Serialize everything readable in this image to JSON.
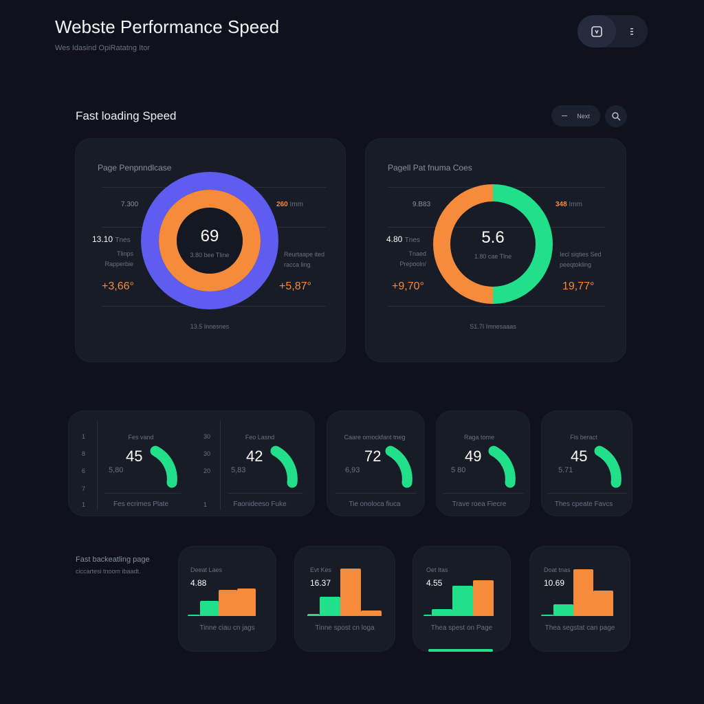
{
  "header": {
    "title": "Webste Performance Speed",
    "subtitle": "Wes Idasind OpiRatatng Itor",
    "icon_button": "shield-icon",
    "menu_button": "more-vertical-icon"
  },
  "section": {
    "title": "Fast loading Speed",
    "toggle_label": "Next",
    "search_icon": "search-icon"
  },
  "donut_cards": [
    {
      "title": "Page Penpnndlcase",
      "center_value": "69",
      "center_sub": "3.80 bee Tline",
      "top_left": "7.300",
      "top_right_value": "260",
      "top_right_unit": "Imm",
      "mid_left_value": "13.10",
      "mid_left_unit": "Tnes",
      "left_label_1": "Tlinps",
      "left_label_2": "Rapperbie",
      "left_delta": "+3,66°",
      "right_label_1": "Reurtaape ited",
      "right_label_2": "racca ling",
      "right_delta": "+5,87°",
      "footer": "13.5 Innesnes"
    },
    {
      "title": "Pagell Pat fnuma Coes",
      "center_value": "5.6",
      "center_sub": "1.80 cae Tlne",
      "top_left": "9.B83",
      "top_right_value": "348",
      "top_right_unit": "Imm",
      "mid_left_value": "4.80",
      "mid_left_unit": "Tnes",
      "left_label_1": "Tnaed",
      "left_label_2": "Prepooln/",
      "left_delta": "+9,70°",
      "right_label_1": "Iecl siqties Sed",
      "right_label_2": "peeqtokling",
      "right_delta": "19,77°",
      "footer": "S1.7I Imnesaaas"
    }
  ],
  "gauge_group": {
    "axis_left": [
      "1",
      "8",
      "6",
      "7",
      "1"
    ],
    "axis_right": [
      "30",
      "30",
      "20",
      "",
      "1"
    ]
  },
  "gauges": [
    {
      "title": "Fes vand",
      "value": "45",
      "sub": "5,80",
      "footer": "Fes ecrimes Plate",
      "level": 0.45
    },
    {
      "title": "Feo Lasnd",
      "value": "42",
      "sub": "5,83",
      "footer": "Faonideeso Fuke",
      "level": 0.42
    },
    {
      "title": "Caare ornockfant tneg",
      "value": "72",
      "sub": "6,93",
      "footer": "Tie onoloca fiuca",
      "level": 0.72
    },
    {
      "title": "Raga tome",
      "value": "49",
      "sub": "5 80",
      "footer": "Trave roea Fiecre",
      "level": 0.49
    },
    {
      "title": "Fis beract",
      "value": "45",
      "sub": "5.71",
      "footer": "Thes cpeate Favcs",
      "level": 0.45
    }
  ],
  "bottom": {
    "title": "Fast backeatling page",
    "subtitle": "ciccartesi tnoom ibaadt."
  },
  "chart_data": [
    {
      "type": "bar",
      "title": "Deeat Laes",
      "value_label": "4.88",
      "xlabel": "Tinne ciau cn jags",
      "values": [
        1,
        22,
        38,
        40
      ],
      "colors": [
        "#22e08a",
        "#22e08a",
        "#f68b3c",
        "#f68b3c"
      ]
    },
    {
      "type": "bar",
      "title": "Evt Kes",
      "value_label": "16.37",
      "xlabel": "Tinne spost cn loga",
      "values": [
        3,
        28,
        69,
        8
      ],
      "colors": [
        "#22e08a",
        "#22e08a",
        "#f68b3c",
        "#f68b3c"
      ]
    },
    {
      "type": "bar",
      "title": "Oet Itas",
      "value_label": "4.55",
      "xlabel": "Thea spest on Page",
      "values": [
        1,
        10,
        44,
        52
      ],
      "colors": [
        "#22e08a",
        "#22e08a",
        "#22e08a",
        "#f68b3c"
      ],
      "progress": 1.0
    },
    {
      "type": "bar",
      "title": "Doat tnas",
      "value_label": "10.69",
      "xlabel": "Thea segstat can page",
      "values": [
        1,
        17,
        68,
        37
      ],
      "colors": [
        "#22e08a",
        "#22e08a",
        "#f68b3c",
        "#f68b3c"
      ]
    }
  ],
  "colors": {
    "bg": "#0f121c",
    "card": "#181c27",
    "green": "#22e08a",
    "orange": "#f68b3c",
    "purple": "#5f5cf0"
  }
}
